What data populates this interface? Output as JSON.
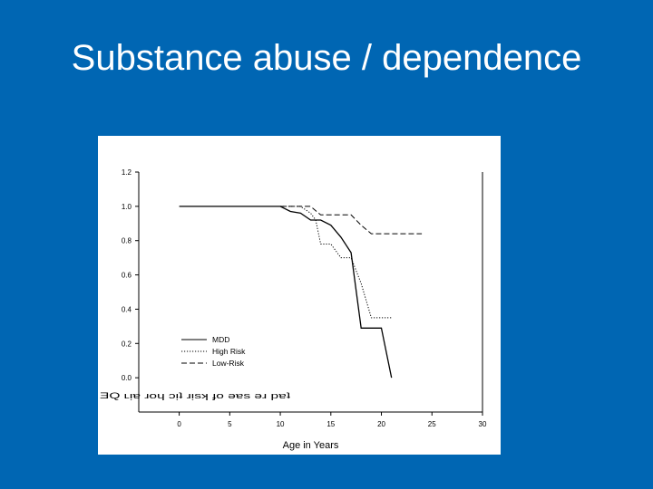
{
  "slide": {
    "title": "Substance abuse / dependence"
  },
  "chart_data": {
    "type": "line",
    "title": "",
    "xlabel": "Age in Years",
    "ylabel": "ƎQ ʟᴉɐ ɹoɥ ɔᴉʇ ɹᴉsʞ ɟo ǝɐs ǝɹ pɐʇ",
    "xlim": [
      -4,
      30
    ],
    "ylim": [
      -0.2,
      1.2
    ],
    "x_ticks": [
      "0",
      "5",
      "10",
      "15",
      "20",
      "25",
      "30"
    ],
    "x_tick_values": [
      0,
      5,
      10,
      15,
      20,
      25,
      30
    ],
    "y_ticks": [
      "1.2",
      "1.0",
      "0.8",
      "0.6",
      "0.4",
      "0.2",
      "0.0"
    ],
    "y_tick_values": [
      1.2,
      1.0,
      0.8,
      0.6,
      0.4,
      0.2,
      0.0
    ],
    "grid": false,
    "legend_position": "lower-left",
    "series": [
      {
        "name": "MDD",
        "style": "solid",
        "x": [
          0,
          10,
          11,
          12,
          13,
          14,
          15,
          16,
          17,
          18,
          20,
          21
        ],
        "y": [
          1.0,
          1.0,
          0.97,
          0.96,
          0.92,
          0.92,
          0.89,
          0.82,
          0.73,
          0.29,
          0.29,
          0.0
        ]
      },
      {
        "name": "High Risk",
        "style": "dotted",
        "x": [
          10,
          12,
          13,
          13.5,
          14,
          15,
          16,
          17,
          18,
          19,
          20,
          21
        ],
        "y": [
          1.0,
          1.0,
          0.96,
          0.92,
          0.78,
          0.78,
          0.7,
          0.7,
          0.55,
          0.35,
          0.35,
          0.35
        ]
      },
      {
        "name": "Low-Risk",
        "style": "dashed",
        "x": [
          10,
          13,
          14,
          15,
          17,
          18,
          19,
          20,
          22,
          24
        ],
        "y": [
          1.0,
          1.0,
          0.95,
          0.95,
          0.95,
          0.89,
          0.84,
          0.84,
          0.84,
          0.84
        ]
      }
    ]
  }
}
